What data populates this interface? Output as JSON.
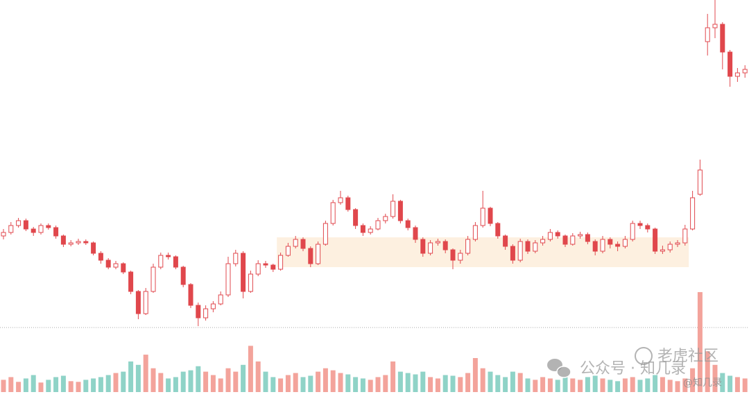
{
  "chart_data": {
    "type": "candlestick",
    "ylim": [
      0,
      480
    ],
    "vlim": [
      0,
      150
    ],
    "reference_line": 8,
    "highlight": {
      "from_index": 37,
      "to_index": 91,
      "low": 95,
      "high": 138,
      "color": "#fdf0e0"
    },
    "colors": {
      "up": "#e0474c",
      "down": "#e0474c",
      "volume_up": "#f3a39b",
      "volume_down": "#8fd3c7"
    },
    "open": [
      140,
      145,
      155,
      162,
      150,
      145,
      155,
      152,
      140,
      128,
      130,
      132,
      130,
      115,
      105,
      95,
      100,
      88,
      60,
      28,
      60,
      95,
      112,
      110,
      95,
      70,
      40,
      22,
      35,
      42,
      55,
      100,
      115,
      60,
      85,
      100,
      98,
      92,
      112,
      125,
      135,
      122,
      100,
      128,
      158,
      188,
      195,
      178,
      155,
      145,
      150,
      162,
      168,
      190,
      162,
      152,
      135,
      115,
      130,
      132,
      120,
      105,
      115,
      135,
      155,
      180,
      158,
      140,
      125,
      105,
      132,
      118,
      130,
      135,
      145,
      140,
      128,
      140,
      142,
      132,
      118,
      135,
      128,
      125,
      135,
      158,
      155,
      150,
      118,
      120,
      128,
      130,
      150,
      200,
      420,
      440,
      445,
      405,
      370,
      375
    ],
    "high": [
      150,
      160,
      166,
      165,
      153,
      158,
      158,
      155,
      142,
      134,
      136,
      135,
      132,
      118,
      108,
      104,
      102,
      90,
      62,
      65,
      100,
      116,
      116,
      112,
      97,
      72,
      44,
      40,
      46,
      60,
      110,
      120,
      118,
      90,
      105,
      104,
      100,
      116,
      130,
      140,
      138,
      125,
      132,
      162,
      192,
      205,
      198,
      180,
      158,
      154,
      166,
      172,
      200,
      192,
      165,
      155,
      138,
      134,
      136,
      135,
      122,
      120,
      140,
      160,
      205,
      182,
      160,
      142,
      128,
      136,
      135,
      134,
      140,
      150,
      148,
      142,
      144,
      146,
      145,
      135,
      140,
      138,
      132,
      140,
      162,
      162,
      158,
      152,
      126,
      132,
      134,
      156,
      205,
      250,
      460,
      480,
      448,
      408,
      382,
      386
    ],
    "low": [
      135,
      142,
      152,
      147,
      140,
      142,
      149,
      136,
      124,
      125,
      127,
      127,
      112,
      100,
      92,
      92,
      85,
      56,
      20,
      26,
      58,
      92,
      106,
      92,
      66,
      36,
      10,
      18,
      30,
      40,
      52,
      96,
      50,
      58,
      82,
      94,
      88,
      90,
      110,
      122,
      118,
      95,
      98,
      126,
      155,
      185,
      175,
      150,
      140,
      142,
      148,
      158,
      165,
      158,
      148,
      130,
      110,
      112,
      126,
      115,
      92,
      100,
      112,
      132,
      152,
      154,
      136,
      120,
      100,
      102,
      114,
      115,
      126,
      132,
      136,
      124,
      126,
      136,
      128,
      112,
      115,
      122,
      118,
      122,
      132,
      150,
      145,
      114,
      114,
      116,
      124,
      126,
      148,
      198,
      400,
      425,
      380,
      355,
      362,
      368
    ],
    "close": [
      145,
      155,
      162,
      150,
      145,
      155,
      152,
      140,
      128,
      130,
      132,
      130,
      115,
      105,
      95,
      100,
      88,
      60,
      28,
      60,
      95,
      112,
      110,
      95,
      70,
      40,
      22,
      35,
      42,
      55,
      100,
      115,
      60,
      85,
      100,
      98,
      92,
      112,
      125,
      135,
      122,
      100,
      128,
      158,
      188,
      195,
      178,
      155,
      145,
      150,
      162,
      168,
      190,
      162,
      152,
      135,
      115,
      130,
      132,
      120,
      105,
      115,
      135,
      155,
      180,
      158,
      140,
      125,
      105,
      132,
      118,
      130,
      135,
      145,
      140,
      128,
      140,
      142,
      132,
      118,
      135,
      128,
      125,
      135,
      158,
      155,
      150,
      118,
      120,
      128,
      130,
      150,
      195,
      235,
      440,
      445,
      405,
      370,
      375,
      380
    ],
    "volume": [
      18,
      22,
      15,
      20,
      25,
      14,
      18,
      22,
      24,
      16,
      15,
      18,
      20,
      22,
      25,
      28,
      30,
      45,
      40,
      55,
      35,
      28,
      20,
      22,
      30,
      32,
      38,
      30,
      25,
      20,
      35,
      30,
      40,
      68,
      45,
      30,
      22,
      20,
      25,
      28,
      22,
      24,
      30,
      35,
      32,
      28,
      26,
      22,
      20,
      18,
      22,
      25,
      45,
      30,
      28,
      26,
      30,
      22,
      20,
      25,
      24,
      22,
      28,
      50,
      35,
      30,
      25,
      22,
      30,
      28,
      20,
      18,
      22,
      20,
      18,
      22,
      20,
      18,
      22,
      24,
      20,
      18,
      16,
      20,
      22,
      18,
      20,
      25,
      22,
      18,
      16,
      20,
      35,
      147,
      60,
      40,
      28,
      24,
      22,
      20
    ]
  },
  "watermark": {
    "account": "公众号 · 知几录",
    "handle": "@知几录",
    "site": "老虎社区"
  }
}
